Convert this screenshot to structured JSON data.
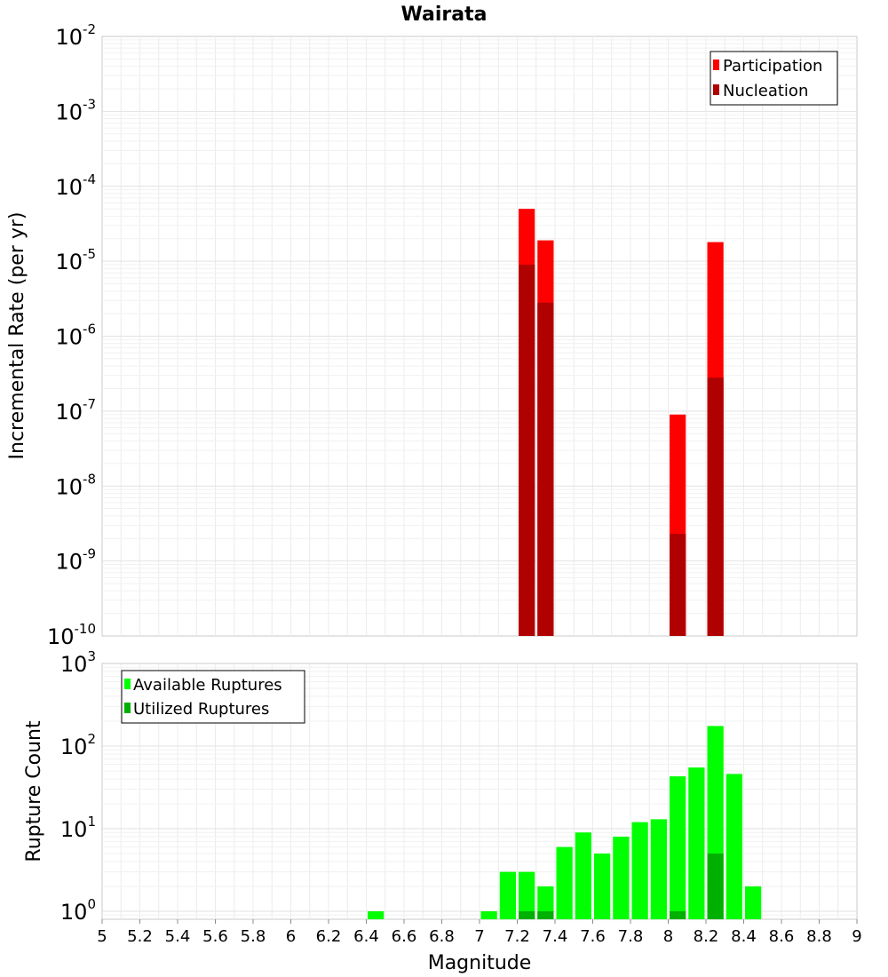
{
  "chart_data": [
    {
      "type": "bar",
      "title": "Wairata",
      "xlabel": "",
      "ylabel": "Incremental Rate (per yr)",
      "xlim": [
        5,
        9
      ],
      "ylim": [
        1e-10,
        0.01
      ],
      "yscale": "log",
      "grid": true,
      "legend_position": "top-right",
      "y_tick_labels": [
        "10-10",
        "10-9",
        "10-8",
        "10-7",
        "10-6",
        "10-5",
        "10-4",
        "10-3",
        "10-2"
      ],
      "series": [
        {
          "name": "Participation",
          "color": "#ff0000",
          "points": [
            {
              "x": 7.25,
              "y": 5e-05
            },
            {
              "x": 7.35,
              "y": 1.9e-05
            },
            {
              "x": 8.05,
              "y": 9e-08
            },
            {
              "x": 8.25,
              "y": 1.8e-05
            }
          ]
        },
        {
          "name": "Nucleation",
          "color": "#b00000",
          "points": [
            {
              "x": 7.25,
              "y": 9e-06
            },
            {
              "x": 7.35,
              "y": 2.8e-06
            },
            {
              "x": 8.05,
              "y": 2.3e-09
            },
            {
              "x": 8.25,
              "y": 2.8e-07
            }
          ]
        }
      ]
    },
    {
      "type": "bar",
      "title": "",
      "xlabel": "Magnitude",
      "ylabel": "Rupture Count",
      "xlim": [
        5,
        9
      ],
      "ylim": [
        0.8,
        1000
      ],
      "yscale": "log",
      "grid": true,
      "legend_position": "top-left",
      "x_tick_labels": [
        "5",
        "5.2",
        "5.4",
        "5.6",
        "5.8",
        "6",
        "6.2",
        "6.4",
        "6.6",
        "6.8",
        "7",
        "7.2",
        "7.4",
        "7.6",
        "7.8",
        "8",
        "8.2",
        "8.4",
        "8.6",
        "8.8",
        "9"
      ],
      "y_tick_labels": [
        "100",
        "101",
        "102",
        "103"
      ],
      "series": [
        {
          "name": "Available Ruptures",
          "color": "#00ff00",
          "points": [
            {
              "x": 6.45,
              "y": 1
            },
            {
              "x": 7.05,
              "y": 1
            },
            {
              "x": 7.15,
              "y": 3
            },
            {
              "x": 7.25,
              "y": 3
            },
            {
              "x": 7.35,
              "y": 2
            },
            {
              "x": 7.45,
              "y": 6
            },
            {
              "x": 7.55,
              "y": 9
            },
            {
              "x": 7.65,
              "y": 5
            },
            {
              "x": 7.75,
              "y": 8
            },
            {
              "x": 7.85,
              "y": 12
            },
            {
              "x": 7.95,
              "y": 13
            },
            {
              "x": 8.05,
              "y": 43
            },
            {
              "x": 8.15,
              "y": 55
            },
            {
              "x": 8.25,
              "y": 175
            },
            {
              "x": 8.35,
              "y": 46
            },
            {
              "x": 8.45,
              "y": 2
            }
          ]
        },
        {
          "name": "Utilized Ruptures",
          "color": "#00b000",
          "points": [
            {
              "x": 7.25,
              "y": 1
            },
            {
              "x": 7.35,
              "y": 1
            },
            {
              "x": 8.05,
              "y": 1
            },
            {
              "x": 8.25,
              "y": 5
            }
          ]
        }
      ]
    }
  ]
}
